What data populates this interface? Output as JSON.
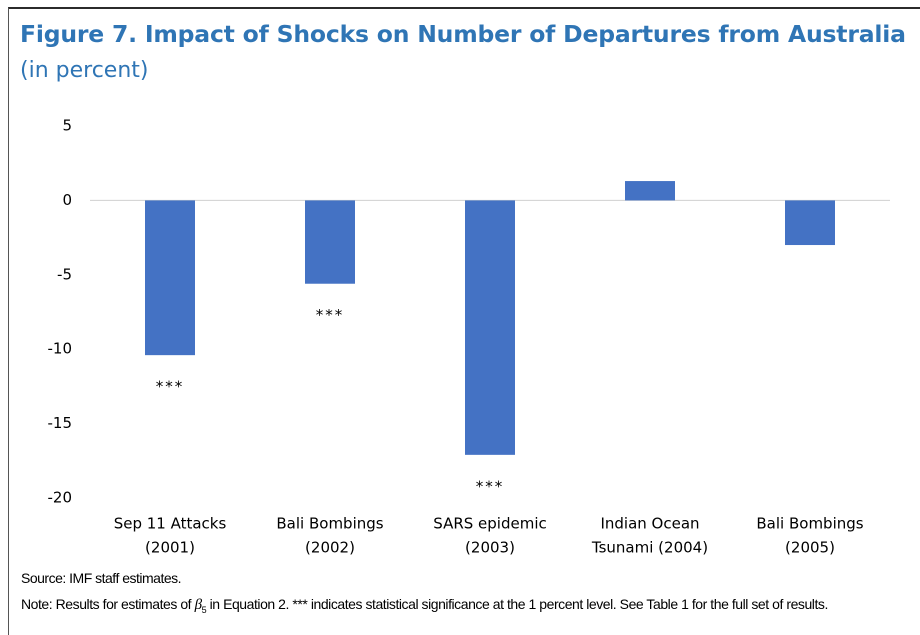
{
  "chart_data": {
    "type": "bar",
    "title": "Figure 7. Impact of Shocks on Number of Departures from Australia",
    "subtitle": "(in percent)",
    "categories": [
      [
        "Sep 11 Attacks",
        "(2001)"
      ],
      [
        "Bali Bombings",
        "(2002)"
      ],
      [
        "SARS epidemic",
        "(2003)"
      ],
      [
        "Indian Ocean",
        "Tsunami (2004)"
      ],
      [
        "Bali Bombings",
        "(2005)"
      ]
    ],
    "values": [
      -10.4,
      -5.6,
      -17.1,
      1.3,
      -3.0
    ],
    "annotations": [
      "***",
      "***",
      "***",
      null,
      null
    ],
    "color": "#4472c4",
    "ylim": [
      -20,
      5
    ],
    "yticks": [
      5,
      0,
      -5,
      -10,
      -15,
      -20
    ],
    "zero_line": true,
    "source": "Source: IMF staff estimates.",
    "note": {
      "before": "Note: Results for estimates of",
      "symbol": "β",
      "subscript": "5",
      "after": "in Equation 2. *** indicates statistical significance at the 1 percent level. See Table 1 for the full set of results."
    }
  }
}
